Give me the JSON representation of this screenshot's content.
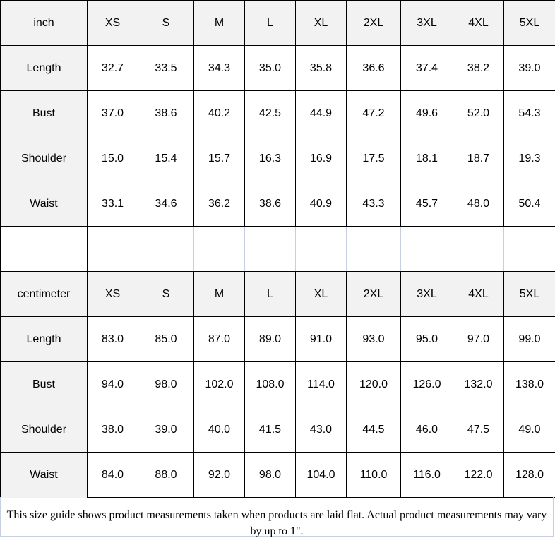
{
  "sizes": [
    "XS",
    "S",
    "M",
    "L",
    "XL",
    "2XL",
    "3XL",
    "4XL",
    "5XL"
  ],
  "tables": [
    {
      "unit": "inch",
      "rows": [
        {
          "label": "Length",
          "values": [
            "32.7",
            "33.5",
            "34.3",
            "35.0",
            "35.8",
            "36.6",
            "37.4",
            "38.2",
            "39.0"
          ]
        },
        {
          "label": "Bust",
          "values": [
            "37.0",
            "38.6",
            "40.2",
            "42.5",
            "44.9",
            "47.2",
            "49.6",
            "52.0",
            "54.3"
          ]
        },
        {
          "label": "Shoulder",
          "values": [
            "15.0",
            "15.4",
            "15.7",
            "16.3",
            "16.9",
            "17.5",
            "18.1",
            "18.7",
            "19.3"
          ]
        },
        {
          "label": "Waist",
          "values": [
            "33.1",
            "34.6",
            "36.2",
            "38.6",
            "40.9",
            "43.3",
            "45.7",
            "48.0",
            "50.4"
          ]
        }
      ]
    },
    {
      "unit": "centimeter",
      "rows": [
        {
          "label": "Length",
          "values": [
            "83.0",
            "85.0",
            "87.0",
            "89.0",
            "91.0",
            "93.0",
            "95.0",
            "97.0",
            "99.0"
          ]
        },
        {
          "label": "Bust",
          "values": [
            "94.0",
            "98.0",
            "102.0",
            "108.0",
            "114.0",
            "120.0",
            "126.0",
            "132.0",
            "138.0"
          ]
        },
        {
          "label": "Shoulder",
          "values": [
            "38.0",
            "39.0",
            "40.0",
            "41.5",
            "43.0",
            "44.5",
            "46.0",
            "47.5",
            "49.0"
          ]
        },
        {
          "label": "Waist",
          "values": [
            "84.0",
            "88.0",
            "92.0",
            "98.0",
            "104.0",
            "110.0",
            "116.0",
            "122.0",
            "128.0"
          ]
        }
      ]
    }
  ],
  "note": "This size guide shows product measurements taken when products are laid flat. Actual product measurements may vary by up to 1\"."
}
